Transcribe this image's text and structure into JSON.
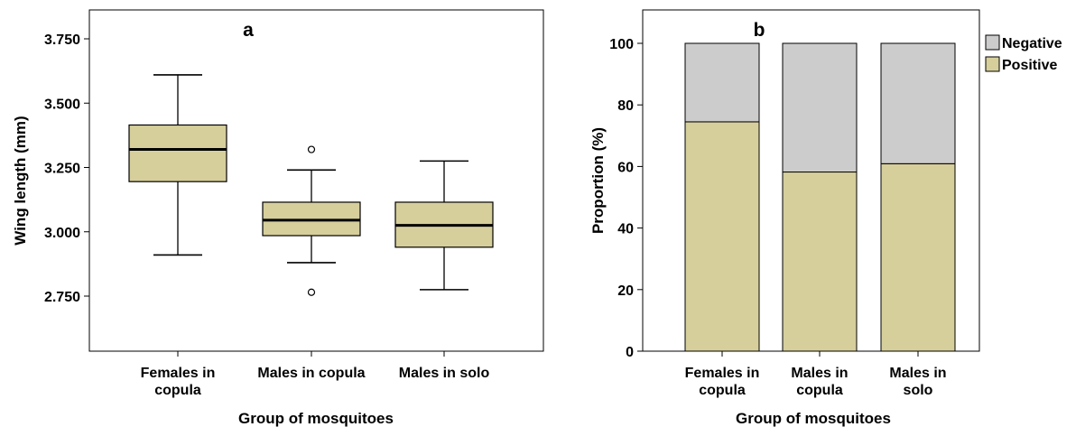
{
  "chart_data": [
    {
      "type": "box",
      "panel_label": "a",
      "xlabel": "Group of mosquitoes",
      "ylabel": "Wing length (mm)",
      "ylim": [
        2.5,
        3.9
      ],
      "yticks": [
        "2.750",
        "3.000",
        "3.250",
        "3.500",
        "3.750"
      ],
      "ytick_values": [
        2.75,
        3.0,
        3.25,
        3.5,
        3.75
      ],
      "categories": [
        [
          "Females in",
          "copula"
        ],
        [
          "Males in copula"
        ],
        [
          "Males in solo"
        ]
      ],
      "boxes": [
        {
          "whisker_low": 2.91,
          "q1": 3.195,
          "median": 3.32,
          "q3": 3.415,
          "whisker_high": 3.61,
          "outliers": []
        },
        {
          "whisker_low": 2.88,
          "q1": 2.985,
          "median": 3.045,
          "q3": 3.115,
          "whisker_high": 3.24,
          "outliers": [
            3.32,
            2.765
          ]
        },
        {
          "whisker_low": 2.775,
          "q1": 2.94,
          "median": 3.025,
          "q3": 3.115,
          "whisker_high": 3.275,
          "outliers": []
        }
      ],
      "box_color": "#d6cf9c",
      "grid": false
    },
    {
      "type": "bar",
      "stacked": true,
      "panel_label": "b",
      "xlabel": "Group of mosquitoes",
      "ylabel": "Proportion (%)",
      "ylim": [
        0,
        100
      ],
      "yticks": [
        "0",
        "20",
        "40",
        "60",
        "80",
        "100"
      ],
      "ytick_values": [
        0,
        20,
        40,
        60,
        80,
        100
      ],
      "categories": [
        [
          "Females in",
          "copula"
        ],
        [
          "Males in",
          "copula"
        ],
        [
          "Males in",
          "solo"
        ]
      ],
      "series": [
        {
          "name": "Positive",
          "values": [
            74.5,
            58.2,
            60.9
          ],
          "color": "#d6cf9c"
        },
        {
          "name": "Negative",
          "values": [
            25.5,
            41.8,
            39.1
          ],
          "color": "#cccccc"
        }
      ],
      "legend": [
        "Negative",
        "Positive"
      ],
      "legend_placement": "top-right",
      "grid": false
    }
  ]
}
